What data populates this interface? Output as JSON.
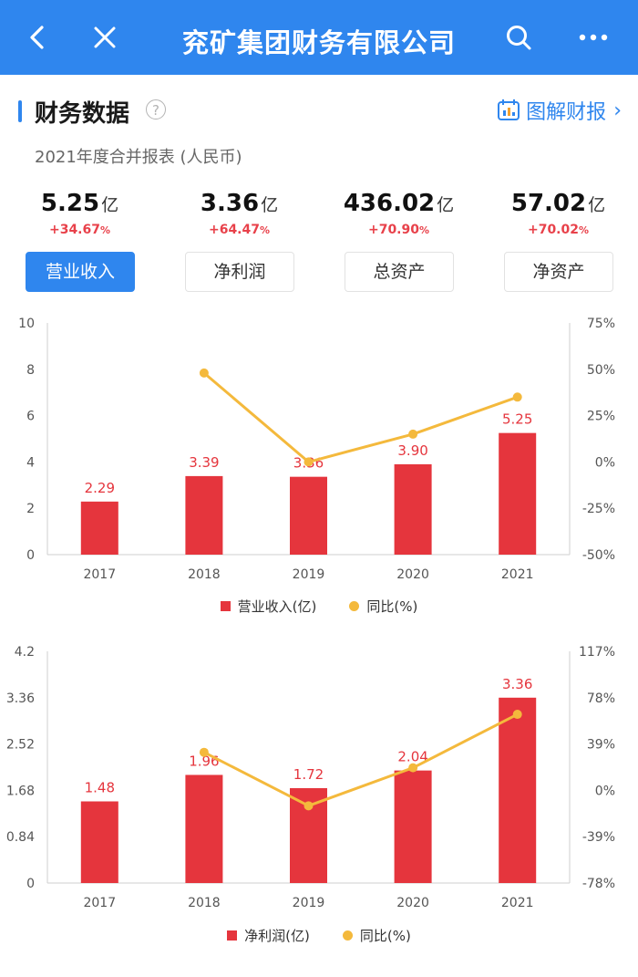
{
  "header": {
    "title": "兖矿集团财务有限公司",
    "back_icon": "back-icon",
    "close_icon": "close-icon",
    "search_icon": "search-icon",
    "more_icon": "more-icon",
    "bg_color": "#2f86ee"
  },
  "section": {
    "title": "财务数据",
    "help_icon_glyph": "?",
    "report_link_label": "图解财报",
    "report_link_chevron": "›",
    "subtitle": "2021年度合并报表 (人民币)"
  },
  "metrics": [
    {
      "value": "5.25",
      "unit": "亿",
      "change": "+34.67",
      "pct": "%"
    },
    {
      "value": "3.36",
      "unit": "亿",
      "change": "+64.47",
      "pct": "%"
    },
    {
      "value": "436.02",
      "unit": "亿",
      "change": "+70.90",
      "pct": "%"
    },
    {
      "value": "57.02",
      "unit": "亿",
      "change": "+70.02",
      "pct": "%"
    }
  ],
  "tabs": [
    {
      "label": "营业收入",
      "active": true
    },
    {
      "label": "净利润",
      "active": false
    },
    {
      "label": "总资产",
      "active": false
    },
    {
      "label": "净资产",
      "active": false
    }
  ],
  "colors": {
    "accent": "#2f86ee",
    "bar": "#e5353d",
    "line": "#f4b93c",
    "up": "#e8414a"
  },
  "chart_data": [
    {
      "type": "bar",
      "categories": [
        "2017",
        "2018",
        "2019",
        "2020",
        "2021"
      ],
      "series": [
        {
          "name": "营业收入(亿)",
          "values": [
            2.29,
            3.39,
            3.36,
            3.9,
            5.25
          ],
          "labels": [
            "2.29",
            "3.39",
            "3.36",
            "3.90",
            "5.25"
          ],
          "axis": "left"
        },
        {
          "name": "同比(%)",
          "type": "line",
          "values": [
            null,
            48,
            0,
            15,
            35
          ],
          "axis": "right"
        }
      ],
      "ylim_left": [
        0,
        10
      ],
      "yticks_left": [
        "0",
        "2",
        "4",
        "6",
        "8",
        "10"
      ],
      "ylim_right": [
        -50,
        75
      ],
      "yticks_right": [
        "-50%",
        "-25%",
        "0%",
        "25%",
        "50%",
        "75%"
      ],
      "legend_position": "bottom"
    },
    {
      "type": "bar",
      "categories": [
        "2017",
        "2018",
        "2019",
        "2020",
        "2021"
      ],
      "series": [
        {
          "name": "净利润(亿)",
          "values": [
            1.48,
            1.96,
            1.72,
            2.04,
            3.36
          ],
          "labels": [
            "1.48",
            "1.96",
            "1.72",
            "2.04",
            "3.36"
          ],
          "axis": "left"
        },
        {
          "name": "同比(%)",
          "type": "line",
          "values": [
            null,
            32,
            -13,
            19,
            64
          ],
          "axis": "right"
        }
      ],
      "ylim_left": [
        0,
        4.2
      ],
      "yticks_left": [
        "0",
        "0.84",
        "1.68",
        "2.52",
        "3.36",
        "4.2"
      ],
      "ylim_right": [
        -78,
        117
      ],
      "yticks_right": [
        "-78%",
        "-39%",
        "0%",
        "39%",
        "78%",
        "117%"
      ],
      "legend_position": "bottom"
    }
  ]
}
